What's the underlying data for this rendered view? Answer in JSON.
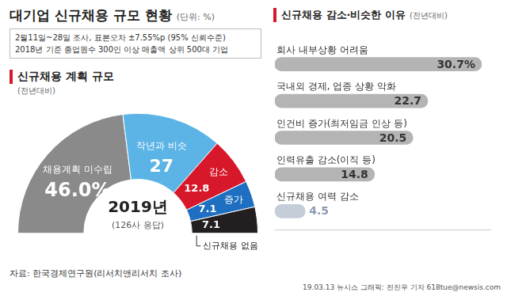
{
  "header": {
    "title": "대기업 신규채용 규모 현황",
    "unit": "(단위: %)",
    "notes": [
      "2월11일~28일 조사, 표본오차 ±7.55%p (95% 신뢰수준)",
      "2018년 기준 종업원수 300인 이상 매출액 상위 500대 기업"
    ]
  },
  "chart_data": [
    {
      "type": "doughnut",
      "title": "신규채용 계획 규모",
      "subtitle": "(전년대비)",
      "annotations": [
        "2019년",
        "(126사 응답)"
      ],
      "categories": [
        "채용계획 미수립",
        "작년과 비슷",
        "감소",
        "증가",
        "신규채용 없음"
      ],
      "values": [
        46.0,
        27,
        12.8,
        7.1,
        7.1
      ],
      "value_labels": [
        "46.0%",
        "27",
        "12.8",
        "7.1",
        "7.1"
      ],
      "colors": [
        "#8a8a8a",
        "#5bb4e5",
        "#d7182a",
        "#1e6fc1",
        "#231f20"
      ],
      "data_labels": true
    },
    {
      "type": "bar",
      "orientation": "horizontal",
      "title": "신규채용 감소·비슷한 이유",
      "subtitle": "(전년대비)",
      "categories": [
        "회사 내부상황 어려움",
        "국내외 경제, 업종 상황 악화",
        "인건비 증가(최저임금 인상 등)",
        "인력유출 감소(이직 등)",
        "신규채용 여력 감소"
      ],
      "values": [
        30.7,
        22.7,
        20.5,
        14.8,
        4.5
      ],
      "value_labels": [
        "30.7%",
        "22.7",
        "20.5",
        "14.8",
        "4.5"
      ],
      "colors": [
        "#b4b4b4",
        "#b4b4b4",
        "#b4b4b4",
        "#b4b4b4",
        "#c5ced8"
      ],
      "xlim": [
        0,
        32
      ],
      "grid": false,
      "tick_labels": false,
      "data_labels": true
    }
  ],
  "footer": {
    "source": "자료: 한국경제연구원(리서치앤리서치 조사)",
    "credit": "19.03.13 뉴시스 그래픽: 전진우 기자 618tue@newsis.com"
  }
}
